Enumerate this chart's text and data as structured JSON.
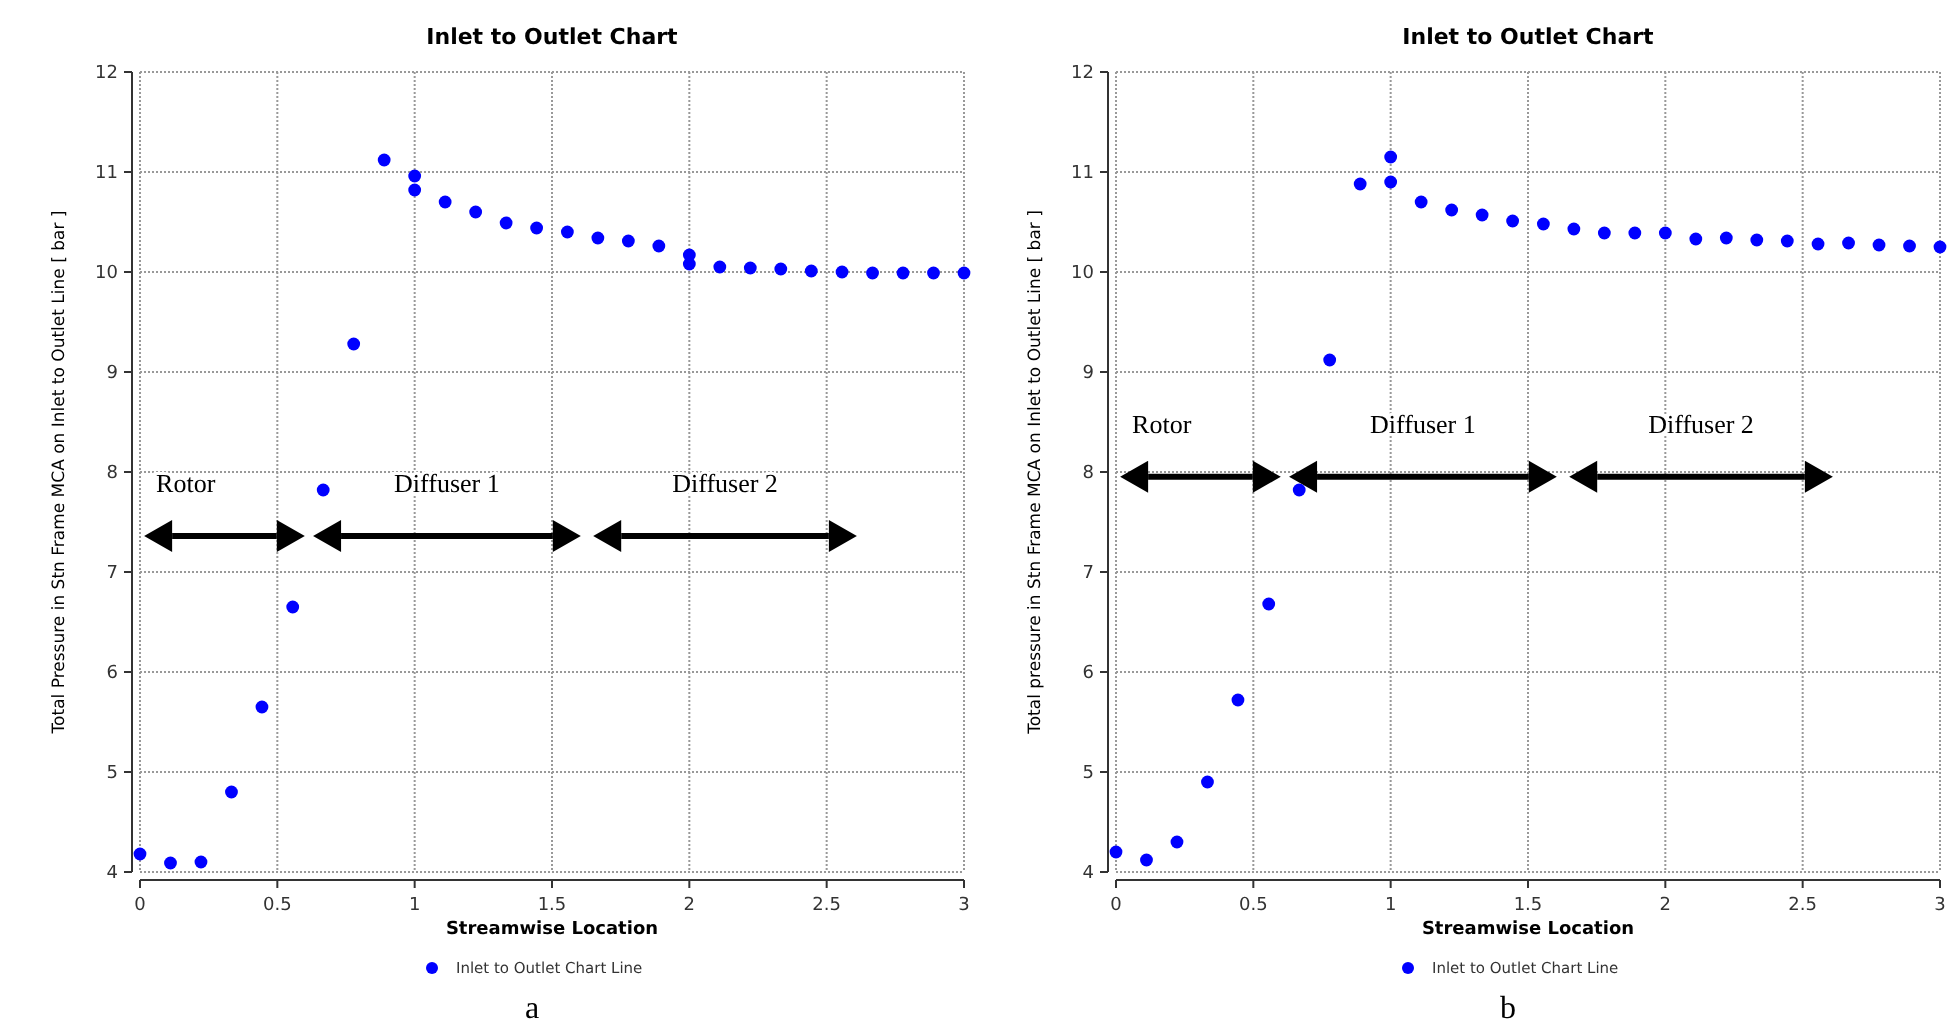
{
  "chart_data": [
    {
      "type": "scatter",
      "title": "Inlet to Outlet Chart",
      "xlabel": "Streamwise Location",
      "ylabel": "Total Pressure in Stn Frame MCA on Inlet to Outlet Line [ bar ]",
      "xlim": [
        0,
        3
      ],
      "ylim": [
        4,
        12
      ],
      "xticks": [
        0,
        0.5,
        1,
        1.5,
        2,
        2.5,
        3
      ],
      "yticks": [
        4,
        5,
        6,
        7,
        8,
        9,
        10,
        11,
        12
      ],
      "grid": true,
      "legend": "bottom",
      "marker": "circle",
      "x": [
        0,
        0.111,
        0.222,
        0.333,
        0.444,
        0.556,
        0.667,
        0.778,
        0.889,
        1,
        1,
        1.111,
        1.222,
        1.333,
        1.444,
        1.556,
        1.667,
        1.778,
        1.889,
        2,
        2,
        2.111,
        2.222,
        2.333,
        2.444,
        2.556,
        2.667,
        2.778,
        2.889,
        3
      ],
      "series": [
        {
          "name": "Inlet to Outlet Chart Line",
          "color": "#0000ff",
          "values": [
            4.18,
            4.09,
            4.1,
            4.8,
            5.65,
            6.65,
            7.82,
            9.28,
            11.12,
            10.96,
            10.82,
            10.7,
            10.6,
            10.49,
            10.44,
            10.4,
            10.34,
            10.31,
            10.26,
            10.17,
            10.08,
            10.05,
            10.04,
            10.03,
            10.01,
            10.0,
            9.99,
            9.99,
            9.99,
            9.99
          ]
        }
      ],
      "annotations": [
        "Rotor",
        "Diffuser 1",
        "Diffuser 2",
        "a"
      ]
    },
    {
      "type": "scatter",
      "title": "Inlet to Outlet Chart",
      "xlabel": "Streamwise Location",
      "ylabel": "Total pressure in Stn Frame MCA on Inlet to Outlet Line [ bar ]",
      "xlim": [
        0,
        3
      ],
      "ylim": [
        4,
        12
      ],
      "xticks": [
        0,
        0.5,
        1,
        1.5,
        2,
        2.5,
        3
      ],
      "yticks": [
        4,
        5,
        6,
        7,
        8,
        9,
        10,
        11,
        12
      ],
      "grid": true,
      "legend": "bottom",
      "marker": "circle",
      "x": [
        0,
        0.111,
        0.222,
        0.333,
        0.444,
        0.556,
        0.667,
        0.778,
        0.889,
        1,
        1,
        1.111,
        1.222,
        1.333,
        1.444,
        1.556,
        1.667,
        1.778,
        1.889,
        2,
        2.111,
        2.222,
        2.333,
        2.444,
        2.556,
        2.667,
        2.778,
        2.889,
        3
      ],
      "series": [
        {
          "name": "Inlet to Outlet Chart Line",
          "color": "#0000ff",
          "values": [
            4.2,
            4.12,
            4.3,
            4.9,
            5.72,
            6.68,
            7.82,
            9.12,
            10.88,
            11.15,
            10.9,
            10.7,
            10.62,
            10.57,
            10.51,
            10.48,
            10.43,
            10.39,
            10.39,
            10.39,
            10.33,
            10.34,
            10.32,
            10.31,
            10.28,
            10.29,
            10.27,
            10.26,
            10.25
          ]
        }
      ],
      "annotations": [
        "Rotor",
        "Diffuser 1",
        "Diffuser 2",
        "b"
      ]
    }
  ]
}
